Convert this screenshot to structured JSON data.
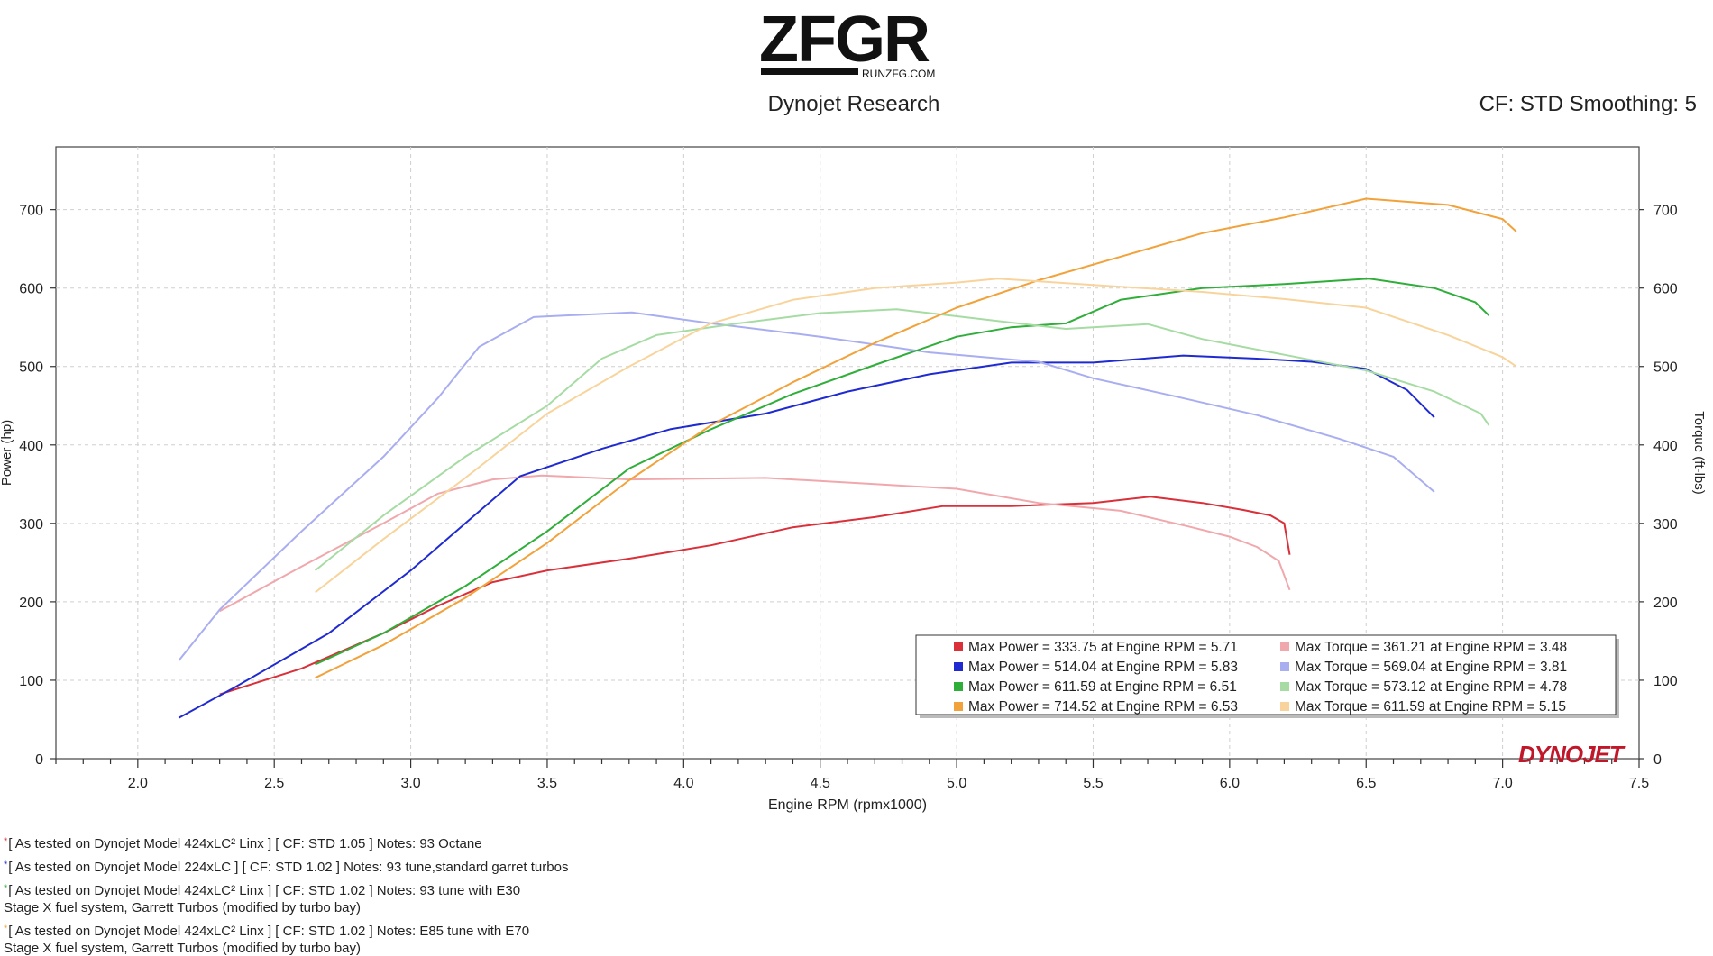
{
  "header": {
    "logo_text": "ZFGR",
    "logo_url": "RUNZFG.COM",
    "subtitle": "Dynojet Research",
    "cf_info": "CF: STD Smoothing: 5"
  },
  "watermark": "DYNOJET",
  "colors": {
    "red": "#d9303a",
    "blue": "#1f2bd1",
    "green": "#2fae3a",
    "orange": "#f2a23a",
    "red_light": "#f0a8ad",
    "blue_light": "#a9aef0",
    "green_light": "#a6dca3",
    "orange_light": "#f8d49c"
  },
  "chart_data": {
    "type": "line",
    "xlabel": "Engine RPM (rpmx1000)",
    "ylabel_left": "Power (hp)",
    "ylabel_right": "Torque (ft-lbs)",
    "xlim": [
      1.7,
      7.5
    ],
    "ylim": [
      0,
      780
    ],
    "x_ticks": [
      "2.0",
      "2.5",
      "3.0",
      "3.5",
      "4.0",
      "4.5",
      "5.0",
      "5.5",
      "6.0",
      "6.5",
      "7.0",
      "7.5"
    ],
    "y_ticks": [
      "0",
      "100",
      "200",
      "300",
      "400",
      "500",
      "600",
      "700"
    ],
    "grid": true,
    "legend_position": "bottom-right",
    "series": [
      {
        "key": "red",
        "metric": "power",
        "name": "Max Power = 333.75 at Engine RPM = 5.71",
        "color": "#d9303a",
        "points": [
          [
            2.3,
            82
          ],
          [
            2.6,
            115
          ],
          [
            2.9,
            160
          ],
          [
            3.1,
            195
          ],
          [
            3.3,
            225
          ],
          [
            3.5,
            240
          ],
          [
            3.8,
            255
          ],
          [
            4.1,
            272
          ],
          [
            4.4,
            295
          ],
          [
            4.7,
            308
          ],
          [
            4.95,
            322
          ],
          [
            5.2,
            322
          ],
          [
            5.5,
            326
          ],
          [
            5.71,
            334
          ],
          [
            5.9,
            326
          ],
          [
            6.05,
            317
          ],
          [
            6.15,
            310
          ],
          [
            6.2,
            300
          ],
          [
            6.22,
            260
          ]
        ]
      },
      {
        "key": "red",
        "metric": "torque",
        "name": "Max Torque = 361.21 at Engine RPM = 3.48",
        "color": "#f0a8ad",
        "points": [
          [
            2.3,
            188
          ],
          [
            2.6,
            245
          ],
          [
            2.9,
            300
          ],
          [
            3.1,
            338
          ],
          [
            3.3,
            356
          ],
          [
            3.48,
            361
          ],
          [
            3.8,
            356
          ],
          [
            4.3,
            358
          ],
          [
            4.7,
            350
          ],
          [
            5.0,
            344
          ],
          [
            5.3,
            326
          ],
          [
            5.6,
            316
          ],
          [
            5.85,
            296
          ],
          [
            6.0,
            283
          ],
          [
            6.1,
            270
          ],
          [
            6.18,
            252
          ],
          [
            6.22,
            215
          ]
        ]
      },
      {
        "key": "blue",
        "metric": "power",
        "name": "Max Power = 514.04 at Engine RPM = 5.83",
        "color": "#1f2bd1",
        "points": [
          [
            2.15,
            52
          ],
          [
            2.35,
            90
          ],
          [
            2.7,
            160
          ],
          [
            3.0,
            240
          ],
          [
            3.2,
            300
          ],
          [
            3.4,
            360
          ],
          [
            3.7,
            395
          ],
          [
            3.95,
            420
          ],
          [
            4.3,
            440
          ],
          [
            4.6,
            468
          ],
          [
            4.9,
            490
          ],
          [
            5.2,
            505
          ],
          [
            5.5,
            505
          ],
          [
            5.83,
            514
          ],
          [
            6.1,
            510
          ],
          [
            6.3,
            506
          ],
          [
            6.5,
            497
          ],
          [
            6.65,
            470
          ],
          [
            6.75,
            435
          ]
        ]
      },
      {
        "key": "blue",
        "metric": "torque",
        "name": "Max Torque = 569.04 at Engine RPM = 3.81",
        "color": "#a9aef0",
        "points": [
          [
            2.15,
            125
          ],
          [
            2.3,
            190
          ],
          [
            2.6,
            290
          ],
          [
            2.9,
            385
          ],
          [
            3.1,
            460
          ],
          [
            3.25,
            525
          ],
          [
            3.45,
            563
          ],
          [
            3.81,
            569
          ],
          [
            4.1,
            555
          ],
          [
            4.5,
            538
          ],
          [
            4.9,
            518
          ],
          [
            5.3,
            506
          ],
          [
            5.5,
            485
          ],
          [
            5.8,
            462
          ],
          [
            6.1,
            438
          ],
          [
            6.4,
            408
          ],
          [
            6.6,
            385
          ],
          [
            6.75,
            340
          ]
        ]
      },
      {
        "key": "green",
        "metric": "power",
        "name": "Max Power = 611.59 at Engine RPM = 6.51",
        "color": "#2fae3a",
        "points": [
          [
            2.65,
            120
          ],
          [
            2.9,
            160
          ],
          [
            3.2,
            220
          ],
          [
            3.5,
            290
          ],
          [
            3.8,
            370
          ],
          [
            4.1,
            420
          ],
          [
            4.4,
            465
          ],
          [
            4.7,
            502
          ],
          [
            5.0,
            538
          ],
          [
            5.2,
            550
          ],
          [
            5.4,
            555
          ],
          [
            5.6,
            585
          ],
          [
            5.9,
            600
          ],
          [
            6.2,
            605
          ],
          [
            6.51,
            612
          ],
          [
            6.75,
            600
          ],
          [
            6.9,
            582
          ],
          [
            6.95,
            565
          ]
        ]
      },
      {
        "key": "green",
        "metric": "torque",
        "name": "Max Torque = 573.12 at Engine RPM = 4.78",
        "color": "#a6dca3",
        "points": [
          [
            2.65,
            240
          ],
          [
            2.9,
            310
          ],
          [
            3.2,
            385
          ],
          [
            3.5,
            450
          ],
          [
            3.7,
            510
          ],
          [
            3.9,
            540
          ],
          [
            4.2,
            555
          ],
          [
            4.5,
            568
          ],
          [
            4.78,
            573
          ],
          [
            5.1,
            560
          ],
          [
            5.4,
            548
          ],
          [
            5.7,
            554
          ],
          [
            5.9,
            535
          ],
          [
            6.2,
            515
          ],
          [
            6.5,
            495
          ],
          [
            6.75,
            468
          ],
          [
            6.92,
            440
          ],
          [
            6.95,
            425
          ]
        ]
      },
      {
        "key": "orange",
        "metric": "power",
        "name": "Max Power = 714.52 at Engine RPM = 6.53",
        "color": "#f2a23a",
        "points": [
          [
            2.65,
            103
          ],
          [
            2.9,
            145
          ],
          [
            3.2,
            205
          ],
          [
            3.5,
            275
          ],
          [
            3.8,
            355
          ],
          [
            4.1,
            425
          ],
          [
            4.4,
            480
          ],
          [
            4.7,
            530
          ],
          [
            5.0,
            575
          ],
          [
            5.3,
            610
          ],
          [
            5.6,
            640
          ],
          [
            5.9,
            670
          ],
          [
            6.2,
            690
          ],
          [
            6.5,
            714
          ],
          [
            6.8,
            706
          ],
          [
            7.0,
            688
          ],
          [
            7.05,
            672
          ]
        ]
      },
      {
        "key": "orange",
        "metric": "torque",
        "name": "Max Torque = 611.59 at Engine RPM = 5.15",
        "color": "#f8d49c",
        "points": [
          [
            2.65,
            212
          ],
          [
            2.9,
            280
          ],
          [
            3.2,
            358
          ],
          [
            3.5,
            440
          ],
          [
            3.8,
            500
          ],
          [
            4.1,
            555
          ],
          [
            4.4,
            585
          ],
          [
            4.7,
            600
          ],
          [
            5.0,
            607
          ],
          [
            5.15,
            612
          ],
          [
            5.5,
            604
          ],
          [
            5.9,
            595
          ],
          [
            6.2,
            586
          ],
          [
            6.5,
            575
          ],
          [
            6.8,
            540
          ],
          [
            7.0,
            512
          ],
          [
            7.05,
            500
          ]
        ]
      }
    ],
    "legend": [
      [
        "Max Power = 333.75 at Engine RPM = 5.71",
        "Max Torque = 361.21 at Engine RPM = 3.48"
      ],
      [
        "Max Power = 514.04 at Engine RPM = 5.83",
        "Max Torque = 569.04 at Engine RPM = 3.81"
      ],
      [
        "Max Power = 611.59 at Engine RPM = 6.51",
        "Max Torque = 573.12 at Engine RPM = 4.78"
      ],
      [
        "Max Power = 714.52 at Engine RPM = 6.53",
        "Max Torque = 611.59 at Engine RPM = 5.15"
      ]
    ]
  },
  "footer": {
    "lines": [
      {
        "mark": "*",
        "text": "[ As tested on Dynojet Model 424xLC² Linx ] [ CF: STD 1.05 ] Notes: 93 Octane"
      },
      {
        "mark": "*",
        "text": "[ As tested on Dynojet Model 224xLC ] [ CF: STD 1.02 ] Notes: 93 tune,standard garret turbos"
      },
      {
        "mark": "*",
        "text": "[ As tested on Dynojet Model 424xLC² Linx ] [ CF: STD 1.02 ] Notes: 93 tune with E30"
      },
      {
        "mark": "",
        "text": "Stage X fuel system, Garrett Turbos (modified by turbo bay)"
      },
      {
        "mark": "*",
        "text": "[ As tested on Dynojet Model 424xLC² Linx ] [ CF: STD 1.02 ] Notes: E85 tune with E70"
      },
      {
        "mark": "",
        "text": "Stage X fuel system, Garrett Turbos (modified by turbo bay)"
      }
    ]
  }
}
